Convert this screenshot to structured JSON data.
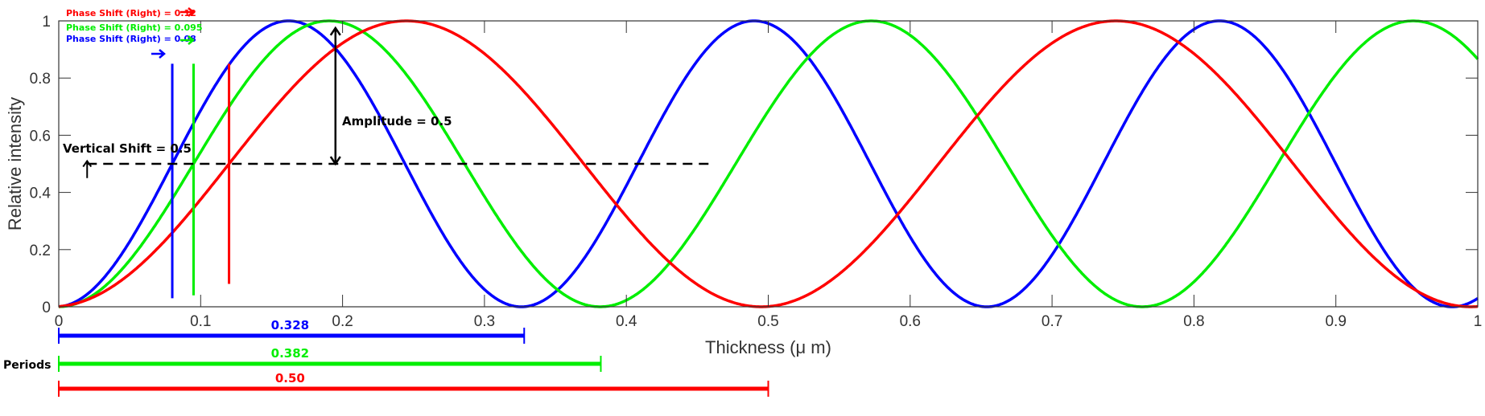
{
  "chart_data": {
    "type": "line",
    "title": "",
    "xlabel": "Thickness (μ m)",
    "ylabel": "Relative intensity",
    "xlim": [
      0,
      1
    ],
    "ylim": [
      0,
      1
    ],
    "xticks": [
      "0",
      "0.1",
      "0.2",
      "0.3",
      "0.4",
      "0.5",
      "0.6",
      "0.7",
      "0.8",
      "0.9",
      "1"
    ],
    "yticks": [
      "0",
      "0.2",
      "0.4",
      "0.6",
      "0.8",
      "1"
    ],
    "grid": false,
    "series": [
      {
        "color": "#0000ff",
        "amplitude": 0.5,
        "vertical_shift": 0.5,
        "period": 0.328,
        "phase_shift": 0.08
      },
      {
        "color": "#00ee00",
        "amplitude": 0.5,
        "vertical_shift": 0.5,
        "period": 0.382,
        "phase_shift": 0.095
      },
      {
        "color": "#ff0000",
        "amplitude": 0.5,
        "vertical_shift": 0.5,
        "period": 0.5,
        "phase_shift": 0.12
      }
    ],
    "annotations": {
      "phase_labels": [
        "Phase Shift (Right) = 0.12",
        "Phase Shift (Right) = 0.095",
        "Phase Shift (Right) = 0.08"
      ],
      "amplitude_label": "Amplitude = 0.5",
      "vertical_shift_label": "Vertical Shift = 0.5",
      "periods_label": "Periods",
      "period_labels": [
        "0.328",
        "0.382",
        "0.50"
      ]
    }
  }
}
